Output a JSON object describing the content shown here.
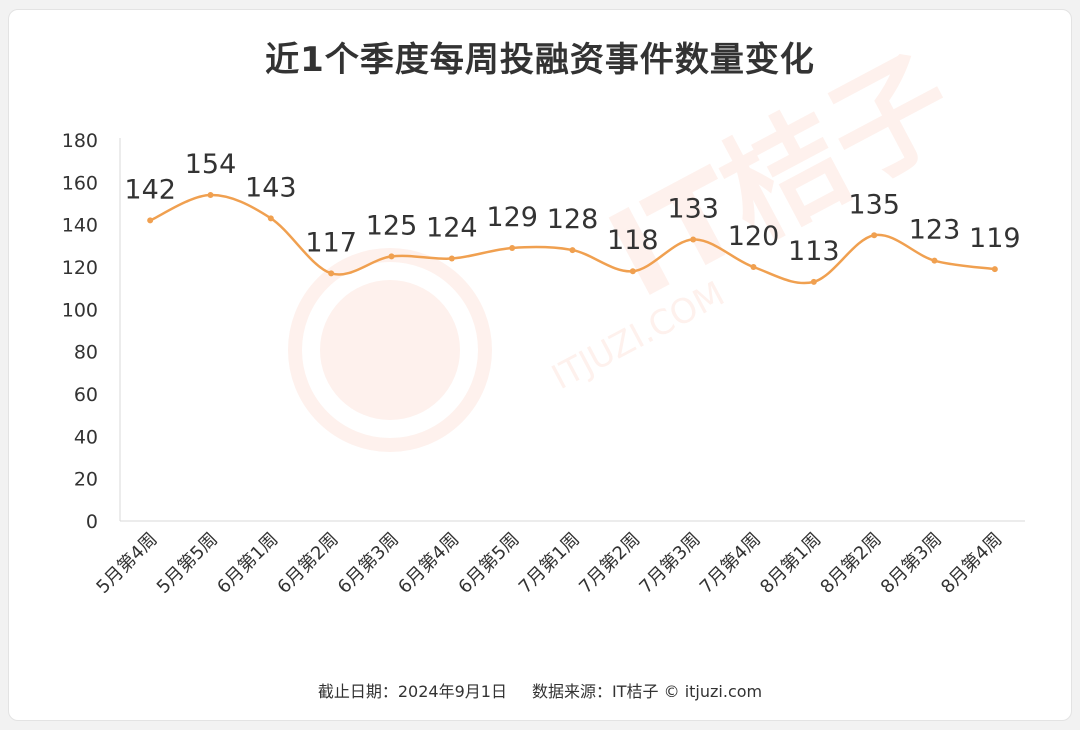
{
  "title": "近1个季度每周投融资事件数量变化",
  "footer": {
    "cutoff": "截止日期：2024年9月1日",
    "source": "数据来源：IT桔子 © itjuzi.com"
  },
  "watermark": {
    "brand_text": "IT桔子",
    "url_text": "ITJUZI.COM"
  },
  "colors": {
    "line": "#f0a050",
    "axis": "#d9d9d9",
    "text": "#333333"
  },
  "chart_data": {
    "type": "line",
    "smooth": true,
    "title": "近1个季度每周投融资事件数量变化",
    "categories": [
      "5月第4周",
      "5月第5周",
      "6月第1周",
      "6月第2周",
      "6月第3周",
      "6月第4周",
      "6月第5周",
      "7月第1周",
      "7月第2周",
      "7月第3周",
      "7月第4周",
      "8月第1周",
      "8月第2周",
      "8月第3周",
      "8月第4周"
    ],
    "values": [
      142,
      154,
      143,
      117,
      125,
      124,
      129,
      128,
      118,
      133,
      120,
      113,
      135,
      123,
      119
    ],
    "ylim": [
      0,
      180
    ],
    "yticks": [
      0,
      20,
      40,
      60,
      80,
      100,
      120,
      140,
      160,
      180
    ],
    "grid": false,
    "legend": "none",
    "data_labels": true
  }
}
